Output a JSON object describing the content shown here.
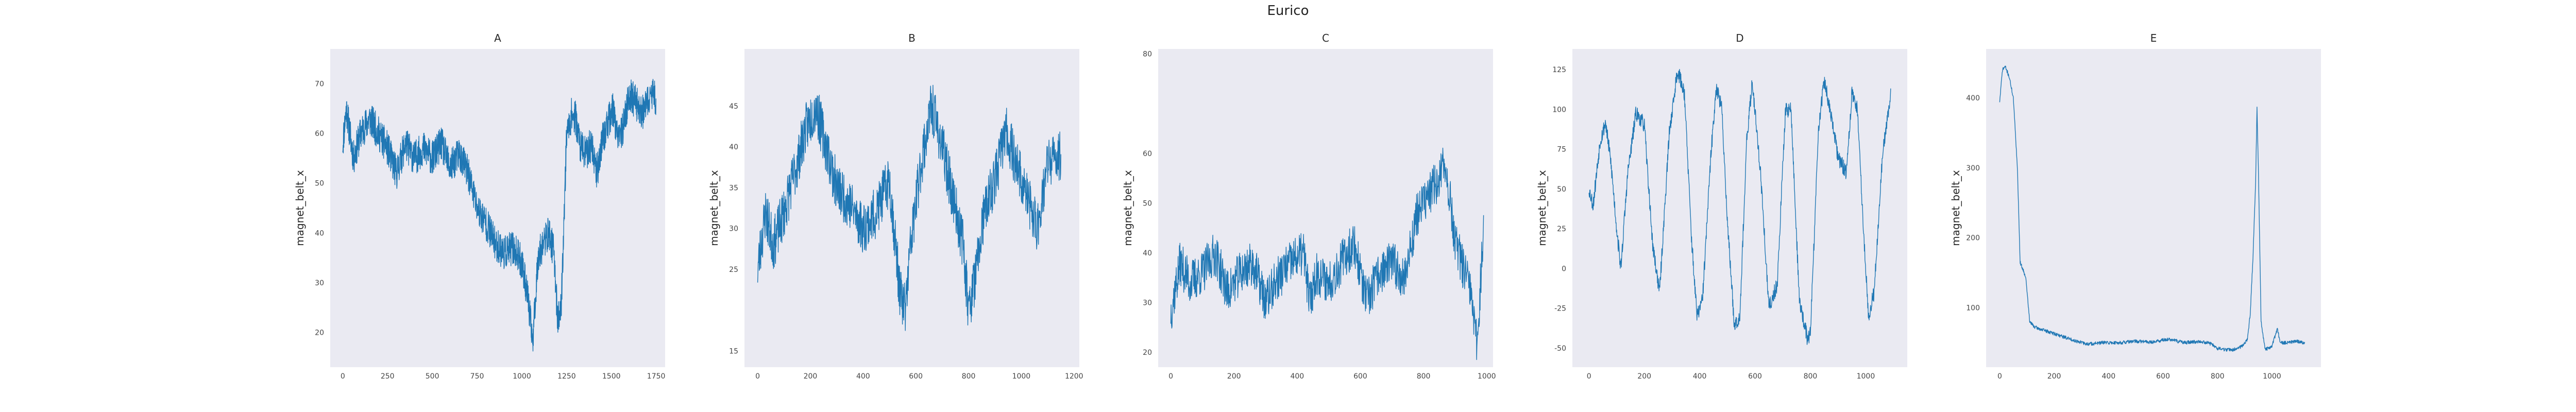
{
  "figure": {
    "title": "Eurico"
  },
  "style": {
    "panel_bg": "#EAEAF2",
    "line_color": "#1F77B4"
  },
  "chart_data": [
    {
      "type": "line",
      "title": "A",
      "xlabel": "",
      "ylabel": "magnet_belt_x",
      "xlim": [
        -70,
        1800
      ],
      "ylim": [
        13,
        77
      ],
      "xticks": [
        0,
        250,
        500,
        750,
        1000,
        1250,
        1500,
        1750
      ],
      "yticks": [
        20,
        30,
        40,
        50,
        60,
        70
      ],
      "series": [
        {
          "x_range": [
            0,
            1750
          ],
          "anchors": [
            [
              0,
              58
            ],
            [
              20,
              65
            ],
            [
              60,
              55
            ],
            [
              100,
              60
            ],
            [
              150,
              63
            ],
            [
              200,
              60
            ],
            [
              250,
              57
            ],
            [
              300,
              52
            ],
            [
              350,
              58
            ],
            [
              400,
              55
            ],
            [
              450,
              57
            ],
            [
              500,
              55
            ],
            [
              550,
              58
            ],
            [
              600,
              53
            ],
            [
              650,
              56
            ],
            [
              700,
              52
            ],
            [
              750,
              45
            ],
            [
              800,
              42
            ],
            [
              850,
              38
            ],
            [
              900,
              36
            ],
            [
              950,
              37
            ],
            [
              1000,
              34
            ],
            [
              1030,
              28
            ],
            [
              1060,
              18
            ],
            [
              1090,
              35
            ],
            [
              1120,
              38
            ],
            [
              1150,
              40
            ],
            [
              1180,
              36
            ],
            [
              1200,
              22
            ],
            [
              1220,
              25
            ],
            [
              1250,
              60
            ],
            [
              1280,
              64
            ],
            [
              1300,
              63
            ],
            [
              1330,
              57
            ],
            [
              1360,
              56
            ],
            [
              1390,
              58
            ],
            [
              1420,
              52
            ],
            [
              1450,
              59
            ],
            [
              1480,
              62
            ],
            [
              1510,
              65
            ],
            [
              1540,
              58
            ],
            [
              1570,
              62
            ],
            [
              1600,
              68
            ],
            [
              1640,
              66
            ],
            [
              1680,
              64
            ],
            [
              1720,
              68
            ],
            [
              1750,
              67
            ]
          ],
          "noise": 3.5,
          "seed": 11
        }
      ]
    },
    {
      "type": "line",
      "title": "B",
      "xlabel": "",
      "ylabel": "magnet_belt_x",
      "xlim": [
        -50,
        1220
      ],
      "ylim": [
        13,
        52
      ],
      "xticks": [
        0,
        200,
        400,
        600,
        800,
        1000,
        1200
      ],
      "yticks": [
        15,
        25,
        30,
        35,
        40,
        45
      ],
      "series": [
        {
          "x_range": [
            0,
            1150
          ],
          "anchors": [
            [
              0,
              25
            ],
            [
              30,
              32
            ],
            [
              60,
              28
            ],
            [
              100,
              32
            ],
            [
              150,
              38
            ],
            [
              180,
              42
            ],
            [
              220,
              45
            ],
            [
              260,
              40
            ],
            [
              300,
              35
            ],
            [
              350,
              33
            ],
            [
              400,
              30
            ],
            [
              450,
              32
            ],
            [
              500,
              36
            ],
            [
              540,
              22
            ],
            [
              560,
              20
            ],
            [
              580,
              28
            ],
            [
              620,
              38
            ],
            [
              660,
              45
            ],
            [
              700,
              40
            ],
            [
              740,
              34
            ],
            [
              780,
              28
            ],
            [
              800,
              20
            ],
            [
              830,
              25
            ],
            [
              860,
              32
            ],
            [
              900,
              36
            ],
            [
              940,
              42
            ],
            [
              980,
              38
            ],
            [
              1020,
              34
            ],
            [
              1060,
              30
            ],
            [
              1100,
              38
            ],
            [
              1150,
              39
            ]
          ],
          "noise": 3.2,
          "seed": 23
        }
      ]
    },
    {
      "type": "line",
      "title": "C",
      "xlabel": "",
      "ylabel": "magnet_belt_x",
      "xlim": [
        -40,
        1020
      ],
      "ylim": [
        17,
        81
      ],
      "xticks": [
        0,
        200,
        400,
        600,
        800,
        1000
      ],
      "yticks": [
        20,
        30,
        40,
        50,
        60,
        80
      ],
      "series": [
        {
          "x_range": [
            0,
            990
          ],
          "anchors": [
            [
              0,
              28
            ],
            [
              30,
              38
            ],
            [
              60,
              34
            ],
            [
              100,
              36
            ],
            [
              140,
              40
            ],
            [
              180,
              32
            ],
            [
              220,
              36
            ],
            [
              260,
              38
            ],
            [
              300,
              30
            ],
            [
              340,
              35
            ],
            [
              380,
              38
            ],
            [
              420,
              40
            ],
            [
              440,
              30
            ],
            [
              460,
              36
            ],
            [
              500,
              34
            ],
            [
              540,
              38
            ],
            [
              580,
              42
            ],
            [
              620,
              30
            ],
            [
              660,
              36
            ],
            [
              700,
              38
            ],
            [
              740,
              35
            ],
            [
              780,
              48
            ],
            [
              800,
              50
            ],
            [
              820,
              52
            ],
            [
              850,
              55
            ],
            [
              870,
              58
            ],
            [
              900,
              42
            ],
            [
              930,
              36
            ],
            [
              950,
              32
            ],
            [
              960,
              25
            ],
            [
              970,
              22
            ],
            [
              990,
              45
            ]
          ],
          "noise": 4.5,
          "seed": 37
        }
      ]
    },
    {
      "type": "line",
      "title": "D",
      "xlabel": "",
      "ylabel": "magnet_belt_x",
      "xlim": [
        -60,
        1150
      ],
      "ylim": [
        -62,
        138
      ],
      "xticks": [
        0,
        200,
        400,
        600,
        800,
        1000
      ],
      "yticks": [
        -50,
        -25,
        0,
        25,
        50,
        75,
        100,
        125
      ],
      "series": [
        {
          "x_range": [
            0,
            1090
          ],
          "anchors": [
            [
              0,
              50
            ],
            [
              15,
              40
            ],
            [
              40,
              80
            ],
            [
              60,
              92
            ],
            [
              80,
              65
            ],
            [
              100,
              25
            ],
            [
              115,
              0
            ],
            [
              140,
              60
            ],
            [
              170,
              98
            ],
            [
              200,
              90
            ],
            [
              230,
              15
            ],
            [
              255,
              -15
            ],
            [
              290,
              85
            ],
            [
              320,
              125
            ],
            [
              345,
              110
            ],
            [
              370,
              20
            ],
            [
              390,
              -30
            ],
            [
              410,
              -20
            ],
            [
              440,
              70
            ],
            [
              460,
              115
            ],
            [
              480,
              100
            ],
            [
              500,
              30
            ],
            [
              525,
              -35
            ],
            [
              545,
              -30
            ],
            [
              570,
              80
            ],
            [
              590,
              118
            ],
            [
              620,
              60
            ],
            [
              650,
              -25
            ],
            [
              680,
              -10
            ],
            [
              710,
              100
            ],
            [
              730,
              100
            ],
            [
              760,
              -20
            ],
            [
              790,
              -45
            ],
            [
              800,
              -40
            ],
            [
              830,
              90
            ],
            [
              850,
              118
            ],
            [
              870,
              100
            ],
            [
              900,
              70
            ],
            [
              930,
              60
            ],
            [
              950,
              110
            ],
            [
              970,
              100
            ],
            [
              990,
              30
            ],
            [
              1010,
              -30
            ],
            [
              1030,
              -15
            ],
            [
              1060,
              70
            ],
            [
              1090,
              110
            ]
          ],
          "noise": 5,
          "seed": 53
        }
      ]
    },
    {
      "type": "line",
      "title": "E",
      "xlabel": "",
      "ylabel": "magnet_belt_x",
      "xlim": [
        -50,
        1180
      ],
      "ylim": [
        15,
        470
      ],
      "xticks": [
        0,
        200,
        400,
        600,
        800,
        1000
      ],
      "yticks": [
        100,
        200,
        300,
        400
      ],
      "series": [
        {
          "x_range": [
            0,
            1120
          ],
          "anchors": [
            [
              0,
              395
            ],
            [
              10,
              440
            ],
            [
              20,
              445
            ],
            [
              35,
              430
            ],
            [
              50,
              400
            ],
            [
              65,
              300
            ],
            [
              75,
              165
            ],
            [
              85,
              155
            ],
            [
              95,
              145
            ],
            [
              100,
              125
            ],
            [
              110,
              80
            ],
            [
              130,
              72
            ],
            [
              160,
              68
            ],
            [
              200,
              63
            ],
            [
              260,
              55
            ],
            [
              320,
              48
            ],
            [
              380,
              50
            ],
            [
              440,
              50
            ],
            [
              500,
              52
            ],
            [
              560,
              51
            ],
            [
              620,
              55
            ],
            [
              680,
              50
            ],
            [
              740,
              52
            ],
            [
              780,
              48
            ],
            [
              800,
              42
            ],
            [
              830,
              40
            ],
            [
              860,
              40
            ],
            [
              890,
              45
            ],
            [
              910,
              55
            ],
            [
              920,
              90
            ],
            [
              930,
              170
            ],
            [
              940,
              280
            ],
            [
              945,
              385
            ],
            [
              950,
              300
            ],
            [
              960,
              80
            ],
            [
              975,
              40
            ],
            [
              1000,
              45
            ],
            [
              1020,
              70
            ],
            [
              1030,
              50
            ],
            [
              1060,
              50
            ],
            [
              1090,
              52
            ],
            [
              1120,
              50
            ]
          ],
          "noise": 2.5,
          "seed": 71
        }
      ]
    }
  ]
}
